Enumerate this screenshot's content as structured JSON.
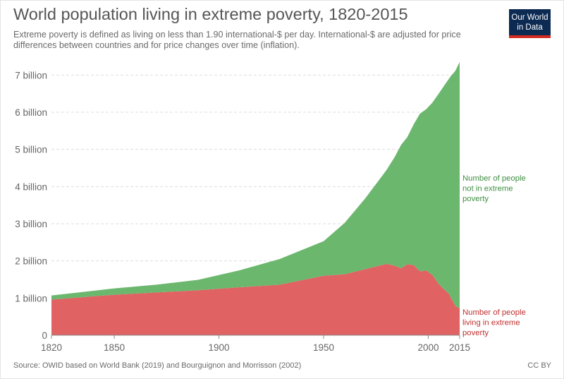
{
  "header": {
    "title": "World population living in extreme poverty, 1820-2015",
    "subtitle": "Extreme poverty is defined as living on less than 1.90 international-$ per day. International-$ are adjusted for price differences between countries and for price changes over time (inflation).",
    "logo_line1": "Our World",
    "logo_line2": "in Data"
  },
  "footer": {
    "source": "Source: OWID based on World Bank (2019) and Bourguignon and Morrisson (2002)",
    "license": "CC BY"
  },
  "chart_data": {
    "type": "area",
    "stacked": true,
    "title": "World population living in extreme poverty, 1820-2015",
    "xlim": [
      1820,
      2015
    ],
    "ylim": [
      0,
      7500000000
    ],
    "x_ticks": [
      1820,
      1850,
      1900,
      1950,
      2000,
      2015
    ],
    "x_tick_labels": [
      "1820",
      "1850",
      "1900",
      "1950",
      "2000",
      "2015"
    ],
    "y_ticks": [
      0,
      1000000000,
      2000000000,
      3000000000,
      4000000000,
      5000000000,
      6000000000,
      7000000000
    ],
    "y_tick_labels": [
      "0",
      "1 billion",
      "2 billion",
      "3 billion",
      "4 billion",
      "5 billion",
      "6 billion",
      "7 billion"
    ],
    "grid": "horizontal-dashed",
    "legend": "inline-right",
    "x": [
      1820,
      1850,
      1870,
      1890,
      1910,
      1929,
      1950,
      1960,
      1970,
      1980,
      1984,
      1987,
      1990,
      1993,
      1996,
      1999,
      2002,
      2005,
      2008,
      2010,
      2011,
      2012,
      2013,
      2015
    ],
    "series": [
      {
        "name": "Number of people living in extreme poverty",
        "label_lines": [
          "Number of people",
          "living in extreme",
          "poverty"
        ],
        "color": "#e06263",
        "values": [
          960000000,
          1090000000,
          1150000000,
          1210000000,
          1290000000,
          1360000000,
          1600000000,
          1640000000,
          1780000000,
          1920000000,
          1870000000,
          1800000000,
          1910000000,
          1890000000,
          1720000000,
          1740000000,
          1620000000,
          1380000000,
          1210000000,
          1110000000,
          980000000,
          900000000,
          780000000,
          730000000
        ]
      },
      {
        "name": "Number of people not in extreme poverty",
        "label_lines": [
          "Number of people",
          "not in extreme",
          "poverty"
        ],
        "color": "#6cb76e",
        "values": [
          110000000,
          170000000,
          210000000,
          280000000,
          460000000,
          690000000,
          930000000,
          1380000000,
          1910000000,
          2520000000,
          2930000000,
          3320000000,
          3420000000,
          3780000000,
          4240000000,
          4340000000,
          4640000000,
          5120000000,
          5540000000,
          5800000000,
          6010000000,
          6150000000,
          6340000000,
          6620000000
        ]
      }
    ]
  }
}
